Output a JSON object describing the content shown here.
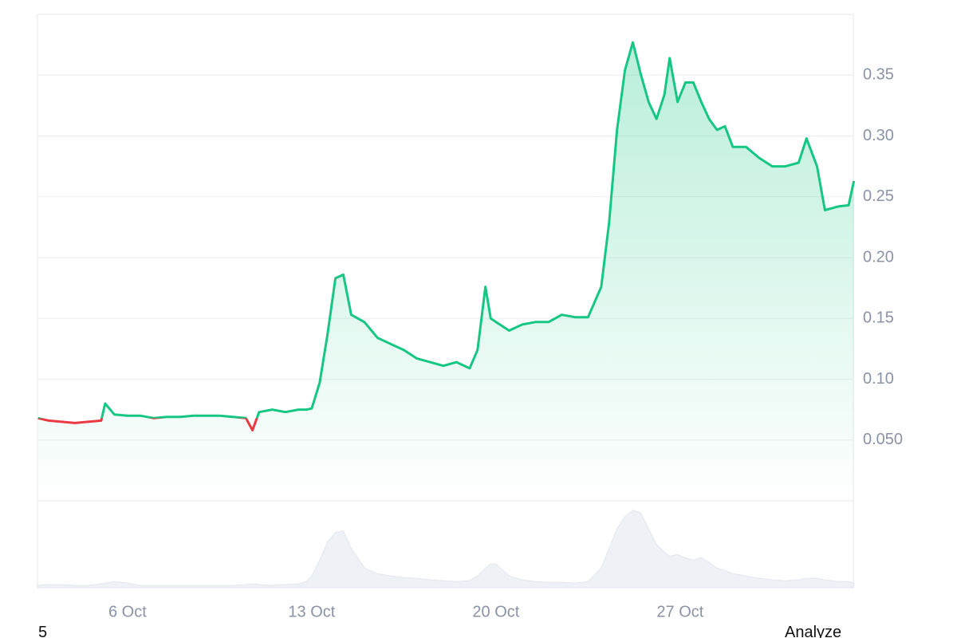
{
  "chart_data": {
    "type": "line",
    "x": [
      2.6,
      3,
      3.5,
      4,
      4.5,
      5,
      5.15,
      5.5,
      6,
      6.5,
      7,
      7.5,
      8,
      8.5,
      9,
      9.5,
      10,
      10.5,
      10.75,
      11,
      11.5,
      12,
      12.5,
      12.8,
      13,
      13.3,
      13.6,
      13.9,
      14.2,
      14.5,
      15,
      15.5,
      16,
      16.5,
      17,
      17.5,
      18,
      18.5,
      19,
      19.3,
      19.6,
      19.8,
      20,
      20.5,
      21,
      21.5,
      22,
      22.5,
      23,
      23.5,
      24,
      24.3,
      24.6,
      24.9,
      25.2,
      25.5,
      25.8,
      26.1,
      26.4,
      26.6,
      26.9,
      27.2,
      27.5,
      27.8,
      28.1,
      28.4,
      28.7,
      29,
      29.5,
      30,
      30.5,
      31,
      31.5,
      31.8,
      32.2,
      32.5,
      33,
      33.4,
      33.6
    ],
    "values": [
      0.068,
      0.066,
      0.065,
      0.064,
      0.065,
      0.066,
      0.08,
      0.071,
      0.07,
      0.07,
      0.068,
      0.069,
      0.069,
      0.07,
      0.07,
      0.07,
      0.069,
      0.068,
      0.058,
      0.073,
      0.075,
      0.073,
      0.075,
      0.075,
      0.076,
      0.097,
      0.137,
      0.183,
      0.186,
      0.153,
      0.147,
      0.134,
      0.129,
      0.124,
      0.117,
      0.114,
      0.111,
      0.114,
      0.109,
      0.124,
      0.176,
      0.15,
      0.147,
      0.14,
      0.145,
      0.147,
      0.147,
      0.153,
      0.151,
      0.151,
      0.176,
      0.229,
      0.305,
      0.354,
      0.377,
      0.351,
      0.328,
      0.314,
      0.334,
      0.364,
      0.328,
      0.344,
      0.344,
      0.328,
      0.314,
      0.305,
      0.308,
      0.291,
      0.291,
      0.282,
      0.275,
      0.275,
      0.278,
      0.298,
      0.275,
      0.239,
      0.242,
      0.243,
      0.263
    ],
    "volume": [
      3,
      4,
      4,
      3,
      3,
      5,
      6,
      8,
      6,
      3,
      3,
      3,
      3,
      3,
      3,
      3,
      3,
      4,
      5,
      4,
      3,
      4,
      5,
      8,
      15,
      35,
      58,
      70,
      72,
      50,
      25,
      18,
      15,
      13,
      12,
      10,
      9,
      8,
      9,
      15,
      25,
      30,
      30,
      15,
      10,
      8,
      7,
      7,
      6,
      8,
      25,
      50,
      75,
      90,
      98,
      95,
      75,
      55,
      45,
      40,
      42,
      38,
      35,
      38,
      32,
      25,
      22,
      18,
      15,
      12,
      10,
      9,
      10,
      12,
      12,
      10,
      8,
      8,
      6
    ],
    "color": "#16c784",
    "down_color": "#ea3943",
    "volume_color": "#eef1f5",
    "volume_lim": [
      0,
      110
    ],
    "xlim": [
      2.58,
      33.58
    ],
    "xticks": [
      {
        "value": 6,
        "label": "6 Oct"
      },
      {
        "value": 13,
        "label": "13 Oct"
      },
      {
        "value": 20,
        "label": "20 Oct"
      },
      {
        "value": 27,
        "label": "27 Oct"
      }
    ],
    "ylim": [
      0,
      0.4
    ],
    "yticks": [
      {
        "value": 0.05,
        "label": "0.050"
      },
      {
        "value": 0.1,
        "label": "0.10"
      },
      0.15,
      {
        "value": 0.2,
        "label": "0.20"
      },
      0.25,
      {
        "value": 0.3,
        "label": "0.30"
      },
      0.35
    ],
    "grid": true
  },
  "footer": {
    "left": "5",
    "right": "Analyze"
  }
}
